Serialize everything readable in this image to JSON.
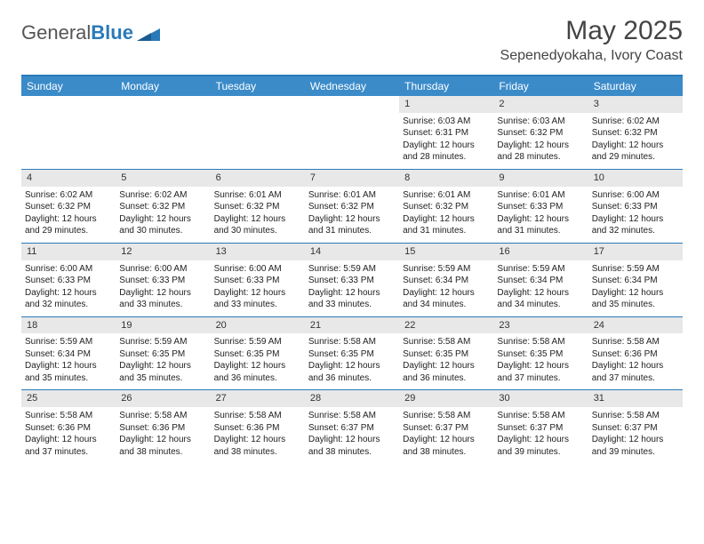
{
  "brand": {
    "part1": "General",
    "part2": "Blue"
  },
  "title": "May 2025",
  "location": "Sepenedyokaha, Ivory Coast",
  "colors": {
    "header_bg": "#3b8bc9",
    "accent": "#2a7ab9",
    "daynum_bg": "#e8e8e8",
    "text": "#222222",
    "bg": "#ffffff"
  },
  "weekdays": [
    "Sunday",
    "Monday",
    "Tuesday",
    "Wednesday",
    "Thursday",
    "Friday",
    "Saturday"
  ],
  "weeks": [
    [
      null,
      null,
      null,
      null,
      {
        "n": "1",
        "sunrise": "6:03 AM",
        "sunset": "6:31 PM",
        "daylight": "12 hours and 28 minutes."
      },
      {
        "n": "2",
        "sunrise": "6:03 AM",
        "sunset": "6:32 PM",
        "daylight": "12 hours and 28 minutes."
      },
      {
        "n": "3",
        "sunrise": "6:02 AM",
        "sunset": "6:32 PM",
        "daylight": "12 hours and 29 minutes."
      }
    ],
    [
      {
        "n": "4",
        "sunrise": "6:02 AM",
        "sunset": "6:32 PM",
        "daylight": "12 hours and 29 minutes."
      },
      {
        "n": "5",
        "sunrise": "6:02 AM",
        "sunset": "6:32 PM",
        "daylight": "12 hours and 30 minutes."
      },
      {
        "n": "6",
        "sunrise": "6:01 AM",
        "sunset": "6:32 PM",
        "daylight": "12 hours and 30 minutes."
      },
      {
        "n": "7",
        "sunrise": "6:01 AM",
        "sunset": "6:32 PM",
        "daylight": "12 hours and 31 minutes."
      },
      {
        "n": "8",
        "sunrise": "6:01 AM",
        "sunset": "6:32 PM",
        "daylight": "12 hours and 31 minutes."
      },
      {
        "n": "9",
        "sunrise": "6:01 AM",
        "sunset": "6:33 PM",
        "daylight": "12 hours and 31 minutes."
      },
      {
        "n": "10",
        "sunrise": "6:00 AM",
        "sunset": "6:33 PM",
        "daylight": "12 hours and 32 minutes."
      }
    ],
    [
      {
        "n": "11",
        "sunrise": "6:00 AM",
        "sunset": "6:33 PM",
        "daylight": "12 hours and 32 minutes."
      },
      {
        "n": "12",
        "sunrise": "6:00 AM",
        "sunset": "6:33 PM",
        "daylight": "12 hours and 33 minutes."
      },
      {
        "n": "13",
        "sunrise": "6:00 AM",
        "sunset": "6:33 PM",
        "daylight": "12 hours and 33 minutes."
      },
      {
        "n": "14",
        "sunrise": "5:59 AM",
        "sunset": "6:33 PM",
        "daylight": "12 hours and 33 minutes."
      },
      {
        "n": "15",
        "sunrise": "5:59 AM",
        "sunset": "6:34 PM",
        "daylight": "12 hours and 34 minutes."
      },
      {
        "n": "16",
        "sunrise": "5:59 AM",
        "sunset": "6:34 PM",
        "daylight": "12 hours and 34 minutes."
      },
      {
        "n": "17",
        "sunrise": "5:59 AM",
        "sunset": "6:34 PM",
        "daylight": "12 hours and 35 minutes."
      }
    ],
    [
      {
        "n": "18",
        "sunrise": "5:59 AM",
        "sunset": "6:34 PM",
        "daylight": "12 hours and 35 minutes."
      },
      {
        "n": "19",
        "sunrise": "5:59 AM",
        "sunset": "6:35 PM",
        "daylight": "12 hours and 35 minutes."
      },
      {
        "n": "20",
        "sunrise": "5:59 AM",
        "sunset": "6:35 PM",
        "daylight": "12 hours and 36 minutes."
      },
      {
        "n": "21",
        "sunrise": "5:58 AM",
        "sunset": "6:35 PM",
        "daylight": "12 hours and 36 minutes."
      },
      {
        "n": "22",
        "sunrise": "5:58 AM",
        "sunset": "6:35 PM",
        "daylight": "12 hours and 36 minutes."
      },
      {
        "n": "23",
        "sunrise": "5:58 AM",
        "sunset": "6:35 PM",
        "daylight": "12 hours and 37 minutes."
      },
      {
        "n": "24",
        "sunrise": "5:58 AM",
        "sunset": "6:36 PM",
        "daylight": "12 hours and 37 minutes."
      }
    ],
    [
      {
        "n": "25",
        "sunrise": "5:58 AM",
        "sunset": "6:36 PM",
        "daylight": "12 hours and 37 minutes."
      },
      {
        "n": "26",
        "sunrise": "5:58 AM",
        "sunset": "6:36 PM",
        "daylight": "12 hours and 38 minutes."
      },
      {
        "n": "27",
        "sunrise": "5:58 AM",
        "sunset": "6:36 PM",
        "daylight": "12 hours and 38 minutes."
      },
      {
        "n": "28",
        "sunrise": "5:58 AM",
        "sunset": "6:37 PM",
        "daylight": "12 hours and 38 minutes."
      },
      {
        "n": "29",
        "sunrise": "5:58 AM",
        "sunset": "6:37 PM",
        "daylight": "12 hours and 38 minutes."
      },
      {
        "n": "30",
        "sunrise": "5:58 AM",
        "sunset": "6:37 PM",
        "daylight": "12 hours and 39 minutes."
      },
      {
        "n": "31",
        "sunrise": "5:58 AM",
        "sunset": "6:37 PM",
        "daylight": "12 hours and 39 minutes."
      }
    ]
  ],
  "labels": {
    "sunrise": "Sunrise:",
    "sunset": "Sunset:",
    "daylight": "Daylight:"
  }
}
